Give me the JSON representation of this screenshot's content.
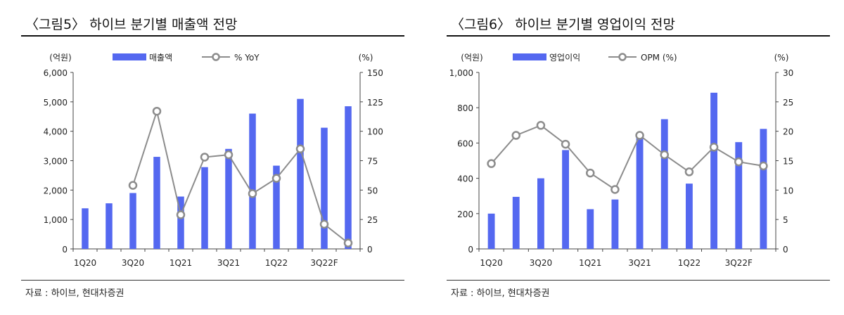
{
  "chart_data": [
    {
      "type": "bar",
      "title": "〈그림5〉 하이브 분기별 매출액 전망",
      "ylabel_left": "(억원)",
      "ylabel_right": "(%)",
      "source": "자료 : 하이브, 현대차증권",
      "categories": [
        "1Q20",
        "2Q20",
        "3Q20",
        "4Q20",
        "1Q21",
        "2Q21",
        "3Q21",
        "4Q21",
        "1Q22",
        "2Q22",
        "3Q22F",
        "4Q22F"
      ],
      "x_tick_labels": [
        "1Q20",
        "3Q20",
        "1Q21",
        "3Q21",
        "1Q22",
        "3Q22F"
      ],
      "series": [
        {
          "name": "매출액",
          "kind": "bar",
          "axis": "left",
          "color": "#5468f0",
          "values": [
            1380,
            1550,
            1900,
            3130,
            1780,
            2780,
            3400,
            4600,
            2830,
            5100,
            4120,
            4850
          ]
        },
        {
          "name": "% YoY",
          "kind": "line",
          "axis": "right",
          "color": "#8c8c8c",
          "values": [
            null,
            null,
            54,
            117,
            29,
            78,
            80,
            47,
            60,
            85,
            21,
            5
          ]
        }
      ],
      "ylim_left": [
        0,
        6000
      ],
      "yticks_left": [
        "6,000",
        "5,000",
        "4,000",
        "3,000",
        "2,000",
        "1,000",
        "0"
      ],
      "ylim_right": [
        0,
        150
      ],
      "yticks_right": [
        "150",
        "125",
        "100",
        "75",
        "50",
        "25",
        "0"
      ],
      "grid": false,
      "legend_position": "top"
    },
    {
      "type": "bar",
      "title": "〈그림6〉 하이브 분기별 영업이익 전망",
      "ylabel_left": "(억원)",
      "ylabel_right": "(%)",
      "source": "자료 : 하이브, 현대차증권",
      "categories": [
        "1Q20",
        "2Q20",
        "3Q20",
        "4Q20",
        "1Q21",
        "2Q21",
        "3Q21",
        "4Q21",
        "1Q22",
        "2Q22",
        "3Q22F",
        "4Q22F"
      ],
      "x_tick_labels": [
        "1Q20",
        "3Q20",
        "1Q21",
        "3Q21",
        "1Q22",
        "3Q22F"
      ],
      "series": [
        {
          "name": "영업이익",
          "kind": "bar",
          "axis": "left",
          "color": "#5468f0",
          "values": [
            200,
            295,
            400,
            560,
            225,
            280,
            650,
            735,
            370,
            885,
            605,
            680
          ]
        },
        {
          "name": "OPM (%)",
          "kind": "line",
          "axis": "right",
          "color": "#8c8c8c",
          "values": [
            14.5,
            19.3,
            21.0,
            17.8,
            12.9,
            10.1,
            19.3,
            16.0,
            13.1,
            17.3,
            14.8,
            14.1
          ]
        }
      ],
      "ylim_left": [
        0,
        1000
      ],
      "yticks_left": [
        "1,000",
        "800",
        "600",
        "400",
        "200",
        "0"
      ],
      "ylim_right": [
        0,
        30
      ],
      "yticks_right": [
        "30",
        "25",
        "20",
        "15",
        "10",
        "5",
        "0"
      ],
      "grid": false,
      "legend_position": "top"
    }
  ]
}
